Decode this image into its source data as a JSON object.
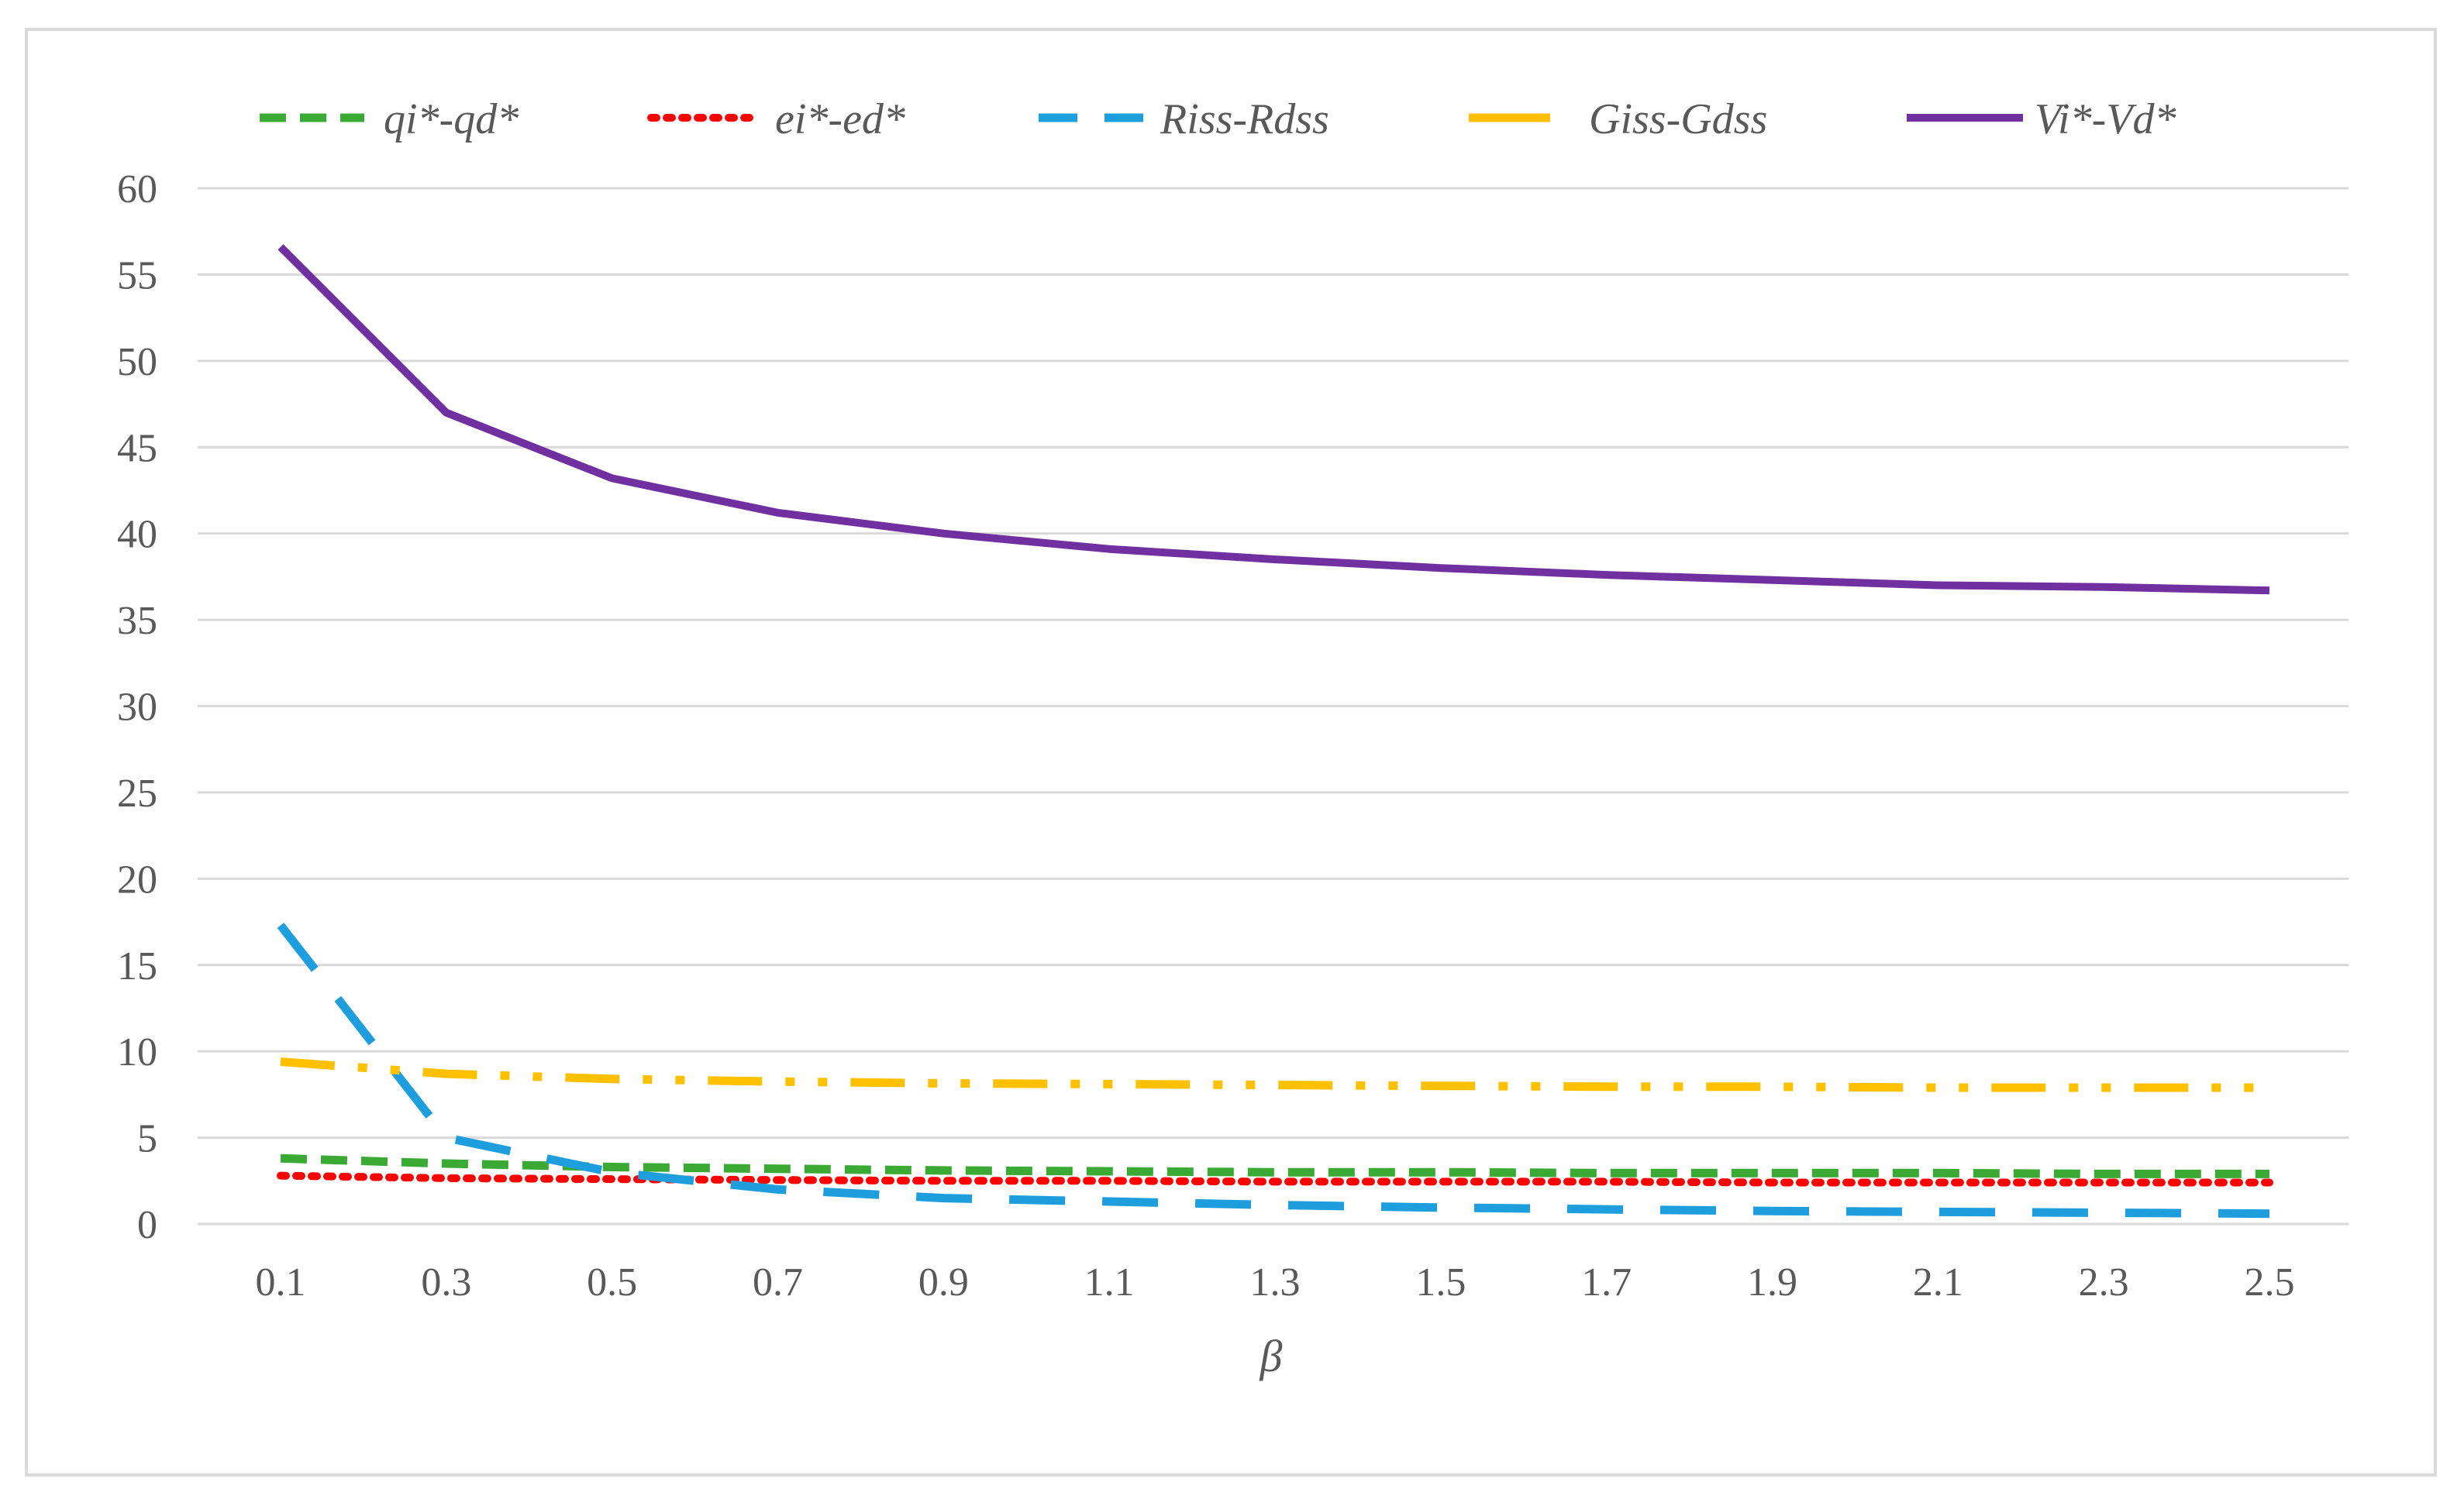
{
  "chart_data": {
    "type": "line",
    "title": "",
    "xlabel": "β",
    "ylabel": "",
    "x": [
      "0.1",
      "0.3",
      "0.5",
      "0.7",
      "0.9",
      "1.1",
      "1.3",
      "1.5",
      "1.7",
      "1.9",
      "2.1",
      "2.3",
      "2.5"
    ],
    "y_ticks": [
      "0",
      "5",
      "10",
      "15",
      "20",
      "25",
      "30",
      "35",
      "40",
      "45",
      "50",
      "55",
      "60"
    ],
    "ylim": [
      0,
      60
    ],
    "grid": "horizontal",
    "legend_position": "top",
    "series": [
      {
        "name": "qi*-qd*",
        "color": "#3aaa35",
        "dash": "dashed",
        "values": [
          3.8,
          3.5,
          3.3,
          3.2,
          3.1,
          3.05,
          3.0,
          3.0,
          2.95,
          2.95,
          2.95,
          2.9,
          2.9
        ]
      },
      {
        "name": "ei*-ed*",
        "color": "#ff0000",
        "dash": "dotted",
        "values": [
          2.8,
          2.65,
          2.6,
          2.55,
          2.5,
          2.5,
          2.45,
          2.45,
          2.45,
          2.4,
          2.4,
          2.4,
          2.4
        ]
      },
      {
        "name": "Riss-Rdss",
        "color": "#1f9ede",
        "dash": "long-dash",
        "values": [
          17.3,
          5.0,
          3.0,
          2.0,
          1.5,
          1.3,
          1.1,
          0.95,
          0.85,
          0.75,
          0.7,
          0.65,
          0.6
        ]
      },
      {
        "name": "Giss-Gdss",
        "color": "#ffc000",
        "dash": "long-dash-dot-dot",
        "values": [
          9.4,
          8.7,
          8.4,
          8.25,
          8.15,
          8.1,
          8.05,
          8.0,
          7.95,
          7.95,
          7.9,
          7.9,
          7.9
        ]
      },
      {
        "name": "Vi*-Vd*",
        "color": "#7030a0",
        "dash": "solid",
        "values": [
          56.6,
          47.0,
          43.2,
          41.2,
          40.0,
          39.1,
          38.5,
          38.0,
          37.6,
          37.3,
          37.0,
          36.9,
          36.7
        ]
      }
    ]
  }
}
